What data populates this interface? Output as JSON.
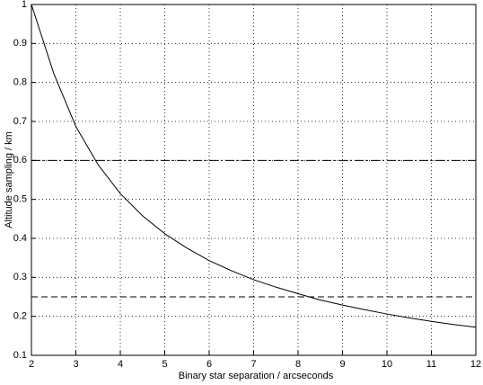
{
  "chart_data": {
    "type": "line",
    "xlabel": "Binary star separation / arcseconds",
    "ylabel": "Altitude sampling / km",
    "x": [
      2,
      2.5,
      3,
      3.5,
      4,
      4.5,
      5,
      5.5,
      6,
      6.5,
      7,
      7.5,
      8,
      8.5,
      9,
      9.5,
      10,
      10.5,
      11,
      11.5,
      12
    ],
    "values": [
      1.0,
      0.824,
      0.687,
      0.589,
      0.515,
      0.458,
      0.412,
      0.375,
      0.343,
      0.317,
      0.294,
      0.275,
      0.258,
      0.242,
      0.229,
      0.217,
      0.206,
      0.196,
      0.187,
      0.179,
      0.172
    ],
    "color": "#000000",
    "hlines": [
      {
        "value": 0.6,
        "style": "dashdot"
      },
      {
        "value": 0.25,
        "style": "dashed"
      }
    ],
    "xlim": [
      2,
      12
    ],
    "xticks": [
      2,
      3,
      4,
      5,
      6,
      7,
      8,
      9,
      10,
      11,
      12
    ],
    "ylim": [
      0.1,
      1
    ],
    "yticks": [
      0.1,
      0.2,
      0.3,
      0.4,
      0.5,
      0.6,
      0.7,
      0.8,
      0.9,
      1
    ],
    "grid": true
  }
}
